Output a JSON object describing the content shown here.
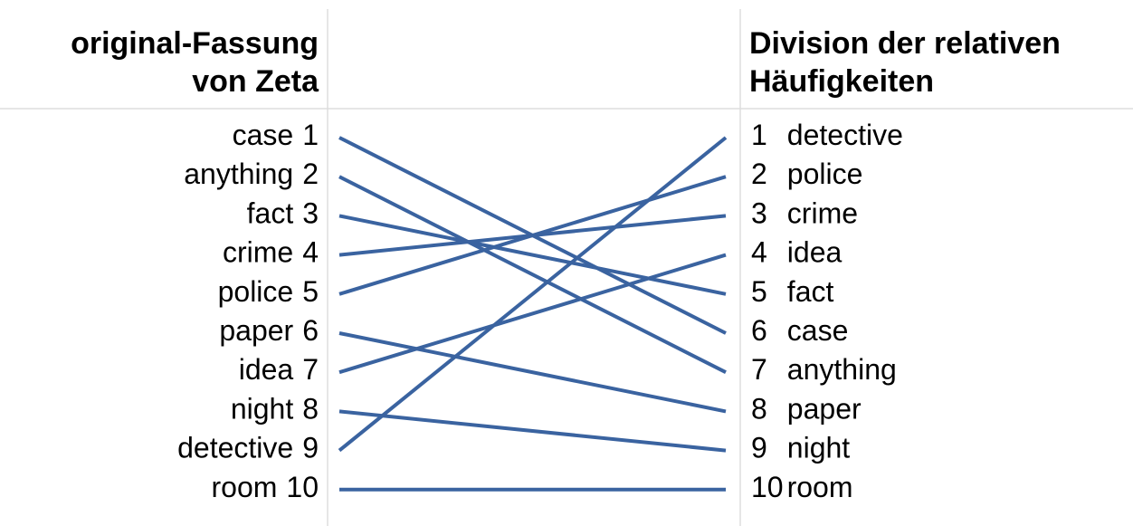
{
  "left": {
    "title": [
      "original-Fassung",
      "von Zeta"
    ],
    "items": [
      {
        "word": "case",
        "rank": 1
      },
      {
        "word": "anything",
        "rank": 2
      },
      {
        "word": "fact",
        "rank": 3
      },
      {
        "word": "crime",
        "rank": 4
      },
      {
        "word": "police",
        "rank": 5
      },
      {
        "word": "paper",
        "rank": 6
      },
      {
        "word": "idea",
        "rank": 7
      },
      {
        "word": "night",
        "rank": 8
      },
      {
        "word": "detective",
        "rank": 9
      },
      {
        "word": "room",
        "rank": 10
      }
    ]
  },
  "right": {
    "title": [
      "Division der relativen",
      "Häufigkeiten"
    ],
    "items": [
      {
        "rank": 1,
        "word": "detective"
      },
      {
        "rank": 2,
        "word": "police"
      },
      {
        "rank": 3,
        "word": "crime"
      },
      {
        "rank": 4,
        "word": "idea"
      },
      {
        "rank": 5,
        "word": "fact"
      },
      {
        "rank": 6,
        "word": "case"
      },
      {
        "rank": 7,
        "word": "anything"
      },
      {
        "rank": 8,
        "word": "paper"
      },
      {
        "rank": 9,
        "word": "night"
      },
      {
        "rank": 10,
        "word": "room"
      }
    ]
  }
}
